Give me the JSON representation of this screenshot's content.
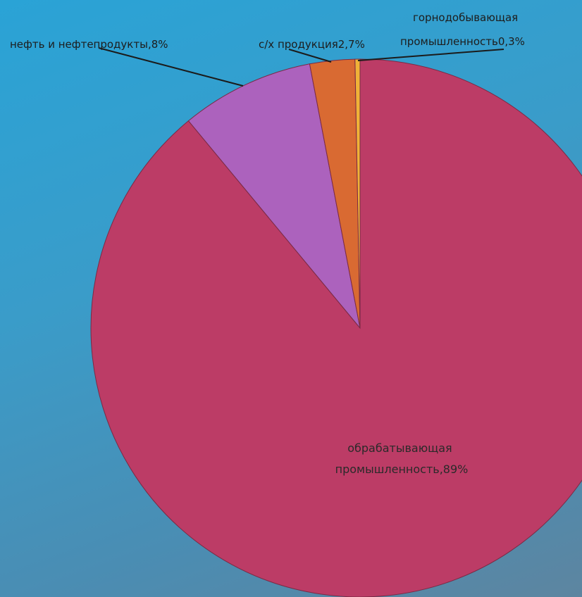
{
  "chart_data": {
    "type": "pie",
    "start_angle_deg": 90,
    "direction": "clockwise",
    "slices": [
      {
        "label_lines": [
          "обрабатывающая",
          "промышленность,89%"
        ],
        "value": 89,
        "color": "#bc3c66"
      },
      {
        "label_lines": [
          "нефть и нефтепродукты,8%"
        ],
        "value": 8,
        "color": "#ac62bd"
      },
      {
        "label_lines": [
          "с/х продукция2,7%"
        ],
        "value": 2.7,
        "color": "#d96a32"
      },
      {
        "label_lines": [
          "горнодобывающая",
          "промышленность0,3%"
        ],
        "value": 0.3,
        "color": "#f0b237"
      }
    ]
  }
}
